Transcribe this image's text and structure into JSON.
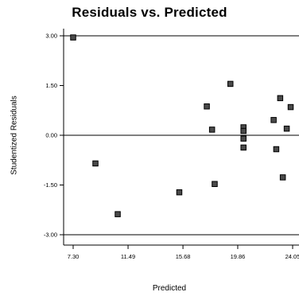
{
  "chart_data": {
    "type": "scatter",
    "title": "Residuals vs. Predicted",
    "xlabel": "Predicted",
    "ylabel": "Studentized Residuals",
    "x_ticks": [
      "7.30",
      "11.49",
      "15.68",
      "19.86",
      "24.05"
    ],
    "y_ticks": [
      "3.00",
      "1.50",
      "0.00",
      "-1.50",
      "-3.00"
    ],
    "xlim": [
      7.3,
      24.05
    ],
    "ylim": [
      -3.0,
      3.0
    ],
    "reference_lines_y": [
      3.0,
      0.0,
      -3.0
    ],
    "points": [
      {
        "x": 7.3,
        "y": 2.95
      },
      {
        "x": 9.0,
        "y": -0.85
      },
      {
        "x": 10.7,
        "y": -2.38
      },
      {
        "x": 15.4,
        "y": -1.72
      },
      {
        "x": 17.5,
        "y": 0.87
      },
      {
        "x": 17.9,
        "y": 0.17
      },
      {
        "x": 18.1,
        "y": -1.47
      },
      {
        "x": 19.3,
        "y": 1.55
      },
      {
        "x": 20.3,
        "y": 0.24
      },
      {
        "x": 20.3,
        "y": 0.13
      },
      {
        "x": 20.3,
        "y": -0.1
      },
      {
        "x": 20.3,
        "y": -0.37
      },
      {
        "x": 22.6,
        "y": 0.46
      },
      {
        "x": 22.8,
        "y": -0.42
      },
      {
        "x": 23.1,
        "y": 1.12
      },
      {
        "x": 23.3,
        "y": -1.27
      },
      {
        "x": 23.6,
        "y": 0.2
      },
      {
        "x": 23.9,
        "y": 0.85
      }
    ]
  }
}
